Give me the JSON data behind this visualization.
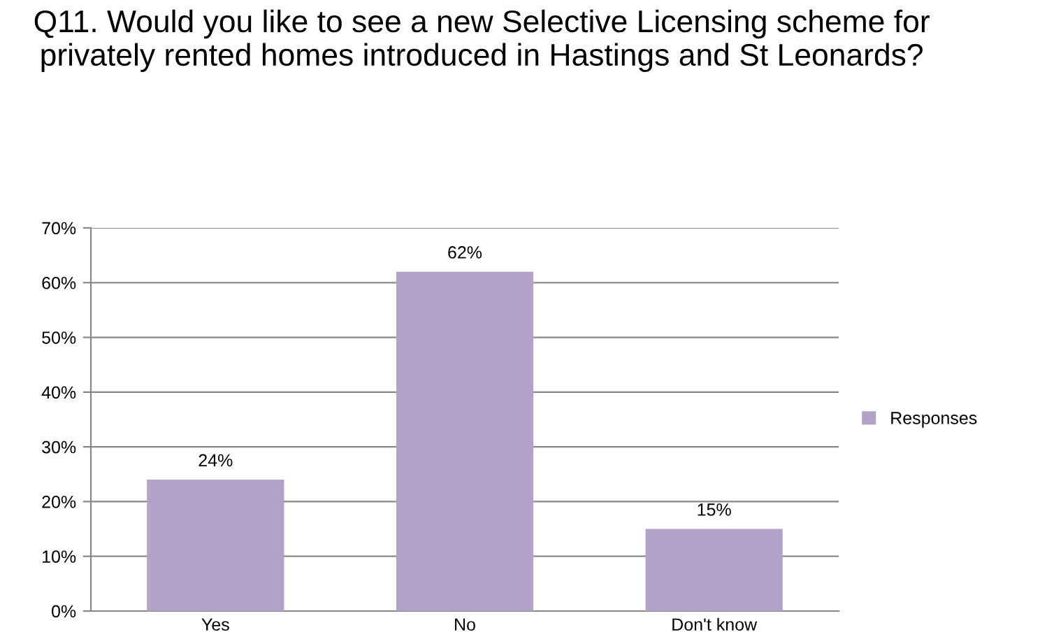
{
  "chart_data": {
    "type": "bar",
    "title": "Q11. Would you like to see a new Selective Licensing scheme for privately rented homes introduced in Hastings and St Leonards?",
    "categories": [
      "Yes",
      "No",
      "Don't know"
    ],
    "series": [
      {
        "name": "Responses",
        "color": "#b3a2c7",
        "values": [
          24,
          62,
          15
        ],
        "value_labels": [
          "24%",
          "62%",
          "15%"
        ]
      }
    ],
    "ylim": [
      0,
      70
    ],
    "yticks": [
      {
        "value": 0,
        "label": "0%"
      },
      {
        "value": 10,
        "label": "10%"
      },
      {
        "value": 20,
        "label": "20%"
      },
      {
        "value": 30,
        "label": "30%"
      },
      {
        "value": 40,
        "label": "40%"
      },
      {
        "value": 50,
        "label": "50%"
      },
      {
        "value": 60,
        "label": "60%"
      },
      {
        "value": 70,
        "label": "70%"
      }
    ],
    "grid": "y",
    "legend": "right"
  }
}
